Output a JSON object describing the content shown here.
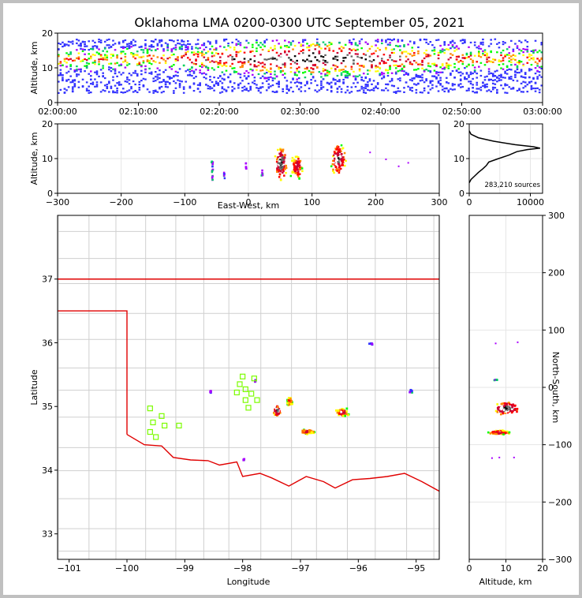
{
  "chart_data": {
    "type": "scatter",
    "title": "Oklahoma LMA 0200-0300 UTC September 05, 2021",
    "time_height": {
      "ylabel": "Altitude, km",
      "ylim": [
        0,
        20
      ],
      "yticks": [
        "0",
        "10",
        "20"
      ],
      "xticks": [
        "02:00:00",
        "02:10:00",
        "02:20:00",
        "02:30:00",
        "02:40:00",
        "02:50:00",
        "03:00:00"
      ],
      "xlim_minutes": [
        0,
        60
      ]
    },
    "ew_altitude": {
      "xlabel": "East-West, km",
      "ylabel": "Altitude, km",
      "xlim": [
        -300,
        300
      ],
      "ylim": [
        0,
        20
      ],
      "xticks": [
        "−300",
        "−200",
        "−100",
        "0",
        "100",
        "200",
        "300"
      ],
      "yticks": [
        "0",
        "10",
        "20"
      ]
    },
    "altitude_histogram": {
      "annotation": "283,210 sources",
      "xlim": [
        0,
        12000
      ],
      "ylim": [
        0,
        20
      ],
      "xticks": [
        "0",
        "10000"
      ],
      "yticks": [
        "0",
        "10",
        "20"
      ],
      "profile": [
        [
          0,
          3
        ],
        [
          300,
          4
        ],
        [
          900,
          5
        ],
        [
          1500,
          6
        ],
        [
          2200,
          7
        ],
        [
          2800,
          8
        ],
        [
          3200,
          9
        ],
        [
          4800,
          10
        ],
        [
          6500,
          11
        ],
        [
          7800,
          12
        ],
        [
          9500,
          12.6
        ],
        [
          11600,
          13
        ],
        [
          10500,
          13.4
        ],
        [
          7500,
          14
        ],
        [
          4000,
          15
        ],
        [
          1500,
          16
        ],
        [
          300,
          17
        ],
        [
          0,
          18
        ]
      ]
    },
    "plan_view": {
      "xlabel": "Longitude",
      "ylabel": "Latitude",
      "xlim": [
        -101.2,
        -94.6
      ],
      "ylim": [
        32.6,
        38.0
      ],
      "xticks": [
        "−101",
        "−100",
        "−99",
        "−98",
        "−97",
        "−96",
        "−95"
      ],
      "yticks": [
        "33",
        "34",
        "35",
        "36",
        "37"
      ],
      "stations": [
        [
          -99.6,
          34.97
        ],
        [
          -99.4,
          34.85
        ],
        [
          -99.55,
          34.75
        ],
        [
          -99.35,
          34.7
        ],
        [
          -99.6,
          34.6
        ],
        [
          -99.5,
          34.52
        ],
        [
          -99.1,
          34.7
        ],
        [
          -98.0,
          35.47
        ],
        [
          -98.05,
          35.35
        ],
        [
          -97.95,
          35.27
        ],
        [
          -98.1,
          35.22
        ],
        [
          -97.8,
          35.44
        ],
        [
          -97.85,
          35.2
        ],
        [
          -97.75,
          35.1
        ],
        [
          -97.95,
          35.1
        ],
        [
          -97.9,
          34.98
        ]
      ]
    },
    "ns_altitude": {
      "xlabel": "Altitude, km",
      "ylabel": "North-South, km",
      "xlim": [
        0,
        20
      ],
      "ylim": [
        -300,
        300
      ],
      "xticks": [
        "0",
        "10",
        "20"
      ],
      "yticks": [
        "−300",
        "−200",
        "−100",
        "0",
        "100",
        "200",
        "300"
      ]
    },
    "colors": {
      "border": "#e00000",
      "counties": "#c8c8c8",
      "stations": "#7cfc00",
      "density_scale": [
        "#3333ff",
        "#aa00ff",
        "#00cc66",
        "#00ff00",
        "#ffff00",
        "#ff8800",
        "#ff0000",
        "#cc0033",
        "#ffffff",
        "#666666",
        "#000000"
      ]
    }
  }
}
